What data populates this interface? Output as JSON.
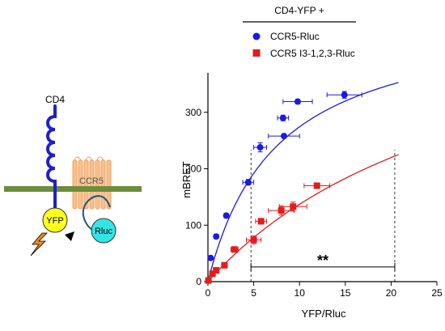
{
  "diagram": {
    "cd4_label": "CD4",
    "ccr5_label": "CCR5",
    "yfp_label": "YFP",
    "rluc_label": "Rluc",
    "colors": {
      "membrane": "#6b8e3a",
      "cd4": "#1f1fcc",
      "ccr5": "#f5b27a",
      "yfp": "#ffff1a",
      "rluc": "#33e5e5",
      "bolt": "#f08a1a"
    }
  },
  "chart_data": {
    "type": "scatter",
    "legend_title": "CD4-YFP +",
    "legend_position": "top",
    "xlabel": "YFP/Rluc",
    "ylabel": "mBRET",
    "xlim": [
      0,
      25
    ],
    "ylim": [
      0,
      370
    ],
    "x_ticks": [
      0,
      5,
      10,
      15,
      20,
      25
    ],
    "y_ticks": [
      0,
      100,
      200,
      300
    ],
    "grid": false,
    "series": [
      {
        "name": "CCR5-Rluc",
        "color": "#1a1ae6",
        "marker": "circle",
        "points": [
          {
            "x": 0.05,
            "y": 2,
            "xerr": 0,
            "yerr": 0
          },
          {
            "x": 0.3,
            "y": 42,
            "xerr": 0.2,
            "yerr": 3
          },
          {
            "x": 0.9,
            "y": 80,
            "xerr": 0.2,
            "yerr": 4
          },
          {
            "x": 2.0,
            "y": 117,
            "xerr": 0.2,
            "yerr": 4
          },
          {
            "x": 4.4,
            "y": 176,
            "xerr": 0.6,
            "yerr": 5
          },
          {
            "x": 5.7,
            "y": 238,
            "xerr": 0.7,
            "yerr": 8
          },
          {
            "x": 8.3,
            "y": 258,
            "xerr": 1.7,
            "yerr": 4
          },
          {
            "x": 8.2,
            "y": 290,
            "xerr": 0.6,
            "yerr": 5
          },
          {
            "x": 9.8,
            "y": 319,
            "xerr": 1.6,
            "yerr": 4
          },
          {
            "x": 14.9,
            "y": 331,
            "xerr": 1.9,
            "yerr": 6
          }
        ],
        "fit": {
          "bmax": 480,
          "kd": 7.5,
          "x_end": 20.8
        }
      },
      {
        "name": "CCR5 I3-1,2,3-Rluc",
        "color": "#e61a1a",
        "marker": "square",
        "points": [
          {
            "x": 0.05,
            "y": 2,
            "xerr": 0,
            "yerr": 0
          },
          {
            "x": 0.5,
            "y": 14,
            "xerr": 0.2,
            "yerr": 2
          },
          {
            "x": 0.9,
            "y": 20,
            "xerr": 0.2,
            "yerr": 2
          },
          {
            "x": 1.8,
            "y": 29,
            "xerr": 0.3,
            "yerr": 2
          },
          {
            "x": 2.9,
            "y": 57,
            "xerr": 0.4,
            "yerr": 3
          },
          {
            "x": 5.0,
            "y": 74,
            "xerr": 0.8,
            "yerr": 7
          },
          {
            "x": 5.8,
            "y": 107,
            "xerr": 0.6,
            "yerr": 5
          },
          {
            "x": 8.0,
            "y": 126,
            "xerr": 1.4,
            "yerr": 8
          },
          {
            "x": 9.3,
            "y": 133,
            "xerr": 1.5,
            "yerr": 8
          },
          {
            "x": 11.9,
            "y": 170,
            "xerr": 1.4,
            "yerr": 4
          }
        ],
        "fit": {
          "bmax": 555,
          "kd": 30.5,
          "x_end": 20.8
        }
      }
    ],
    "annotations": {
      "vlines": [
        4.7,
        20.4
      ],
      "bracket": {
        "x1": 4.7,
        "x2": 20.4,
        "y": 26,
        "label": "**"
      }
    }
  }
}
